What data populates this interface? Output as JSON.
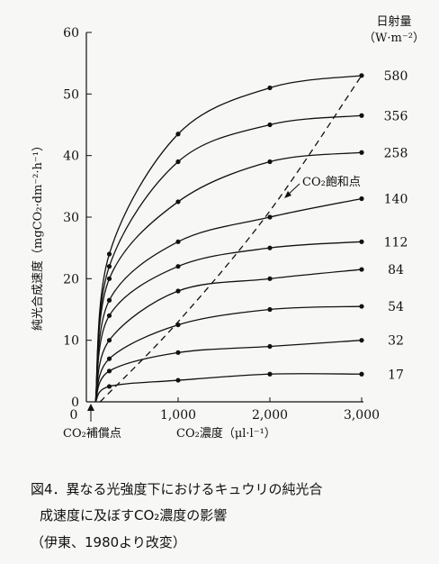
{
  "chart_data": {
    "type": "line",
    "ylabel": "純光合成速度（mgCO₂·dm⁻²·h⁻¹）",
    "xlabel": "CO₂濃度（μl·l⁻¹）",
    "xlim": [
      0,
      3000
    ],
    "ylim": [
      0,
      60
    ],
    "xticks": [
      "0",
      "1,000",
      "2,000",
      "3,000"
    ],
    "yticks": [
      "0",
      "10",
      "20",
      "30",
      "40",
      "50",
      "60"
    ],
    "legend_title": "日射量\n（W·m⁻²）",
    "grid": false,
    "legend_placement": "right (labels at curve ends)",
    "series": [
      {
        "name": "580",
        "x": [
          100,
          250,
          1000,
          2000,
          3000
        ],
        "y": [
          0,
          24,
          43.5,
          51,
          53
        ]
      },
      {
        "name": "356",
        "x": [
          100,
          250,
          1000,
          2000,
          3000
        ],
        "y": [
          0,
          22,
          39,
          45,
          46.5
        ]
      },
      {
        "name": "258",
        "x": [
          100,
          250,
          1000,
          2000,
          3000
        ],
        "y": [
          0,
          20,
          32.5,
          39,
          40.5
        ]
      },
      {
        "name": "140",
        "x": [
          100,
          250,
          1000,
          2000,
          3000
        ],
        "y": [
          0,
          16.5,
          26,
          30,
          33
        ]
      },
      {
        "name": "112",
        "x": [
          100,
          250,
          1000,
          2000,
          3000
        ],
        "y": [
          0,
          14,
          22,
          25,
          26
        ]
      },
      {
        "name": "84",
        "x": [
          100,
          250,
          1000,
          2000,
          3000
        ],
        "y": [
          0,
          10,
          18,
          20,
          21.5
        ]
      },
      {
        "name": "54",
        "x": [
          100,
          250,
          1000,
          2000,
          3000
        ],
        "y": [
          0,
          7,
          12.5,
          15,
          15.5
        ]
      },
      {
        "name": "32",
        "x": [
          100,
          250,
          1000,
          2000,
          3000
        ],
        "y": [
          0,
          5,
          8,
          9,
          10
        ]
      },
      {
        "name": "17",
        "x": [
          100,
          250,
          1000,
          2000,
          3000
        ],
        "y": [
          0,
          2.5,
          3.5,
          4.5,
          4.5
        ]
      }
    ],
    "saturation_line": {
      "name": "CO₂飽和点",
      "x": [
        150,
        1000,
        2000,
        3000
      ],
      "y": [
        0,
        13,
        31,
        53
      ]
    },
    "annotations": {
      "compensation_point": "CO₂補償点",
      "saturation_point": "CO₂飽和点"
    }
  },
  "caption": {
    "line1": "図4．異なる光強度下におけるキュウリの純光合",
    "line2": "成速度に及ぼすCO₂濃度の影響",
    "line3": "（伊東、1980より改変）"
  },
  "colors": {
    "ink": "#111111",
    "background": "#f7f7f5"
  }
}
